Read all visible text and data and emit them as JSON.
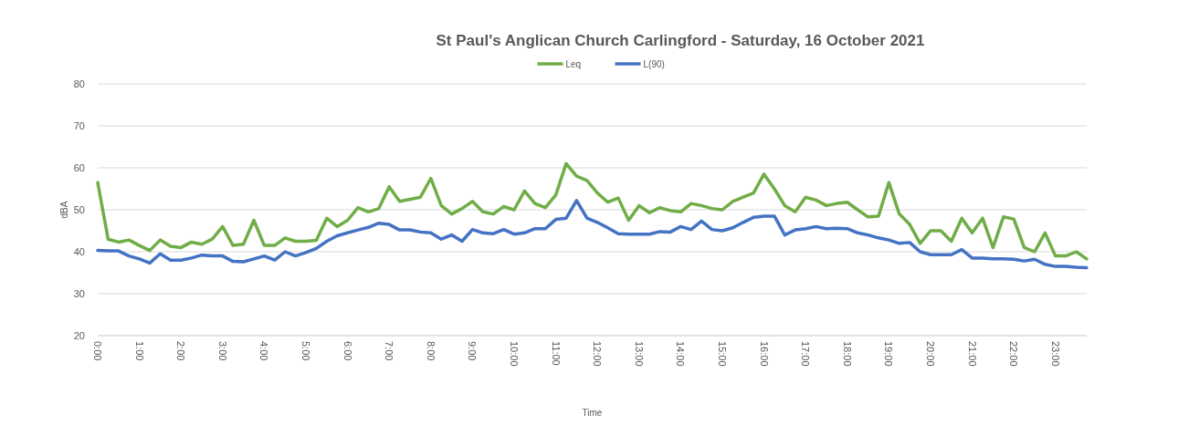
{
  "chart_data": {
    "type": "line",
    "title": "St Paul's Anglican Church Carlingford - Saturday, 16 October 2021",
    "xlabel": "Time",
    "ylabel": "dBA",
    "categories": [
      "0:00",
      null,
      null,
      null,
      "1:00",
      null,
      null,
      null,
      "2:00",
      null,
      null,
      null,
      "3:00",
      null,
      null,
      null,
      "4:00",
      null,
      null,
      null,
      "5:00",
      null,
      null,
      null,
      "6:00",
      null,
      null,
      null,
      "7:00",
      null,
      null,
      null,
      "8:00",
      null,
      null,
      null,
      "9:00",
      null,
      null,
      null,
      "10:00",
      null,
      null,
      null,
      "11:00",
      null,
      null,
      null,
      "12:00",
      null,
      null,
      null,
      "13:00",
      null,
      null,
      null,
      "14:00",
      null,
      null,
      null,
      "15:00",
      null,
      null,
      null,
      "16:00",
      null,
      null,
      null,
      "17:00",
      null,
      null,
      null,
      "18:00",
      null,
      null,
      null,
      "19:00",
      null,
      null,
      null,
      "20:00",
      null,
      null,
      null,
      "21:00",
      null,
      null,
      null,
      "22:00",
      null,
      null,
      null,
      "23:00",
      null,
      null,
      null
    ],
    "series": [
      {
        "name": "Leq",
        "color": "#70ad47",
        "values": [
          56.5,
          43,
          42.3,
          42.8,
          41.5,
          40.3,
          42.8,
          41.3,
          41,
          42.3,
          41.8,
          43,
          46,
          41.5,
          41.8,
          47.5,
          41.5,
          41.5,
          43.3,
          42.5,
          42.5,
          42.7,
          48,
          46,
          47.5,
          50.5,
          49.5,
          50.3,
          55.5,
          52,
          52.5,
          53,
          57.5,
          51,
          49,
          50.3,
          52,
          49.5,
          49,
          50.8,
          50,
          54.5,
          51.5,
          50.5,
          53.5,
          61,
          58,
          57,
          54,
          51.8,
          52.8,
          47.5,
          51,
          49.3,
          50.5,
          49.8,
          49.5,
          51.5,
          51,
          50.3,
          50,
          52,
          53,
          54,
          58.5,
          55,
          51,
          49.5,
          53,
          52.3,
          51,
          51.5,
          51.8,
          50,
          48.3,
          48.5,
          56.5,
          49,
          46.5,
          42,
          45,
          45,
          42.5,
          48,
          44.5,
          48,
          41,
          48.3,
          47.8,
          41,
          40,
          44.5,
          39,
          39,
          40,
          38.3
        ]
      },
      {
        "name": "L(90)",
        "color": "#4472c4",
        "values": [
          40.3,
          40.2,
          40.2,
          39,
          38.3,
          37.3,
          39.5,
          38,
          38,
          38.5,
          39.2,
          39,
          39,
          37.7,
          37.6,
          38.3,
          39,
          38,
          40,
          39,
          39.8,
          40.8,
          42.5,
          43.8,
          44.5,
          45.2,
          45.8,
          46.8,
          46.5,
          45.2,
          45.2,
          44.7,
          44.5,
          43,
          44,
          42.5,
          45.3,
          44.5,
          44.3,
          45.3,
          44.2,
          44.5,
          45.5,
          45.5,
          47.7,
          48,
          52.2,
          48,
          47,
          45.7,
          44.3,
          44.2,
          44.2,
          44.2,
          44.8,
          44.7,
          46,
          45.3,
          47.3,
          45.3,
          45,
          45.7,
          47,
          48.2,
          48.5,
          48.5,
          44,
          45.2,
          45.5,
          46,
          45.5,
          45.6,
          45.5,
          44.5,
          44,
          43.3,
          42.8,
          42,
          42.2,
          40,
          39.3,
          39.3,
          39.3,
          40.5,
          38.5,
          38.5,
          38.3,
          38.3,
          38.2,
          37.8,
          38.2,
          37,
          36.5,
          36.5,
          36.3,
          36.2
        ]
      }
    ],
    "ylim": [
      20,
      80
    ],
    "yticks": [
      20,
      30,
      40,
      50,
      60,
      70,
      80
    ],
    "grid": "y",
    "legend": "top",
    "marker": "none",
    "line_style": "solid"
  }
}
